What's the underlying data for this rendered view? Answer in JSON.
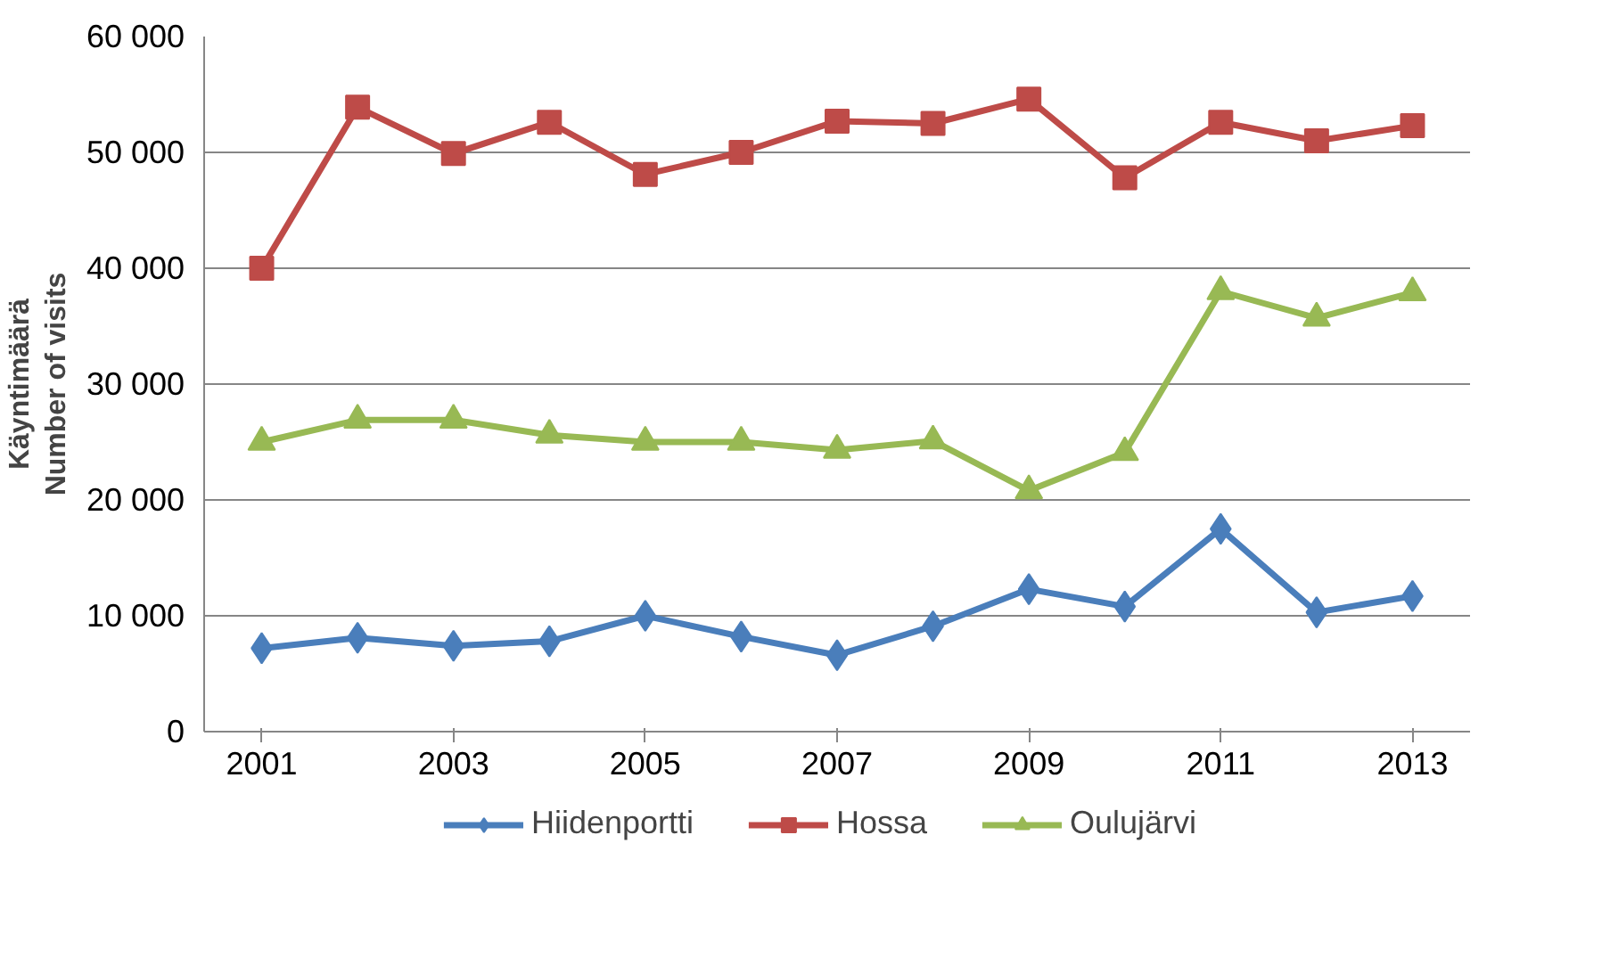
{
  "chart_data": {
    "type": "line",
    "ylabel": "Käyntimäärä\nNumber of visits",
    "x": [
      2001,
      2002,
      2003,
      2004,
      2005,
      2006,
      2007,
      2008,
      2009,
      2010,
      2011,
      2012,
      2013
    ],
    "series": [
      {
        "name": "Hiidenportti",
        "color": "#4a7ebb",
        "marker": "diamond",
        "values": [
          7200,
          8100,
          7400,
          7800,
          10000,
          8200,
          6600,
          9100,
          12300,
          10800,
          17500,
          10300,
          11700
        ]
      },
      {
        "name": "Hossa",
        "color": "#be4b48",
        "marker": "square",
        "values": [
          40000,
          53900,
          49900,
          52600,
          48100,
          50000,
          52700,
          52500,
          54600,
          47800,
          52600,
          51000,
          52300
        ]
      },
      {
        "name": "Oulujärvi",
        "color": "#98b954",
        "marker": "triangle",
        "values": [
          25000,
          26900,
          26900,
          25600,
          25000,
          25000,
          24300,
          25100,
          20800,
          24100,
          38000,
          35700,
          37900
        ]
      }
    ],
    "xlim": [
      2000.4,
      2013.6
    ],
    "xticks": [
      2001,
      2003,
      2005,
      2007,
      2009,
      2011,
      2013
    ],
    "ylim": [
      0,
      60000
    ],
    "yticks": [
      {
        "value": 0,
        "label": "0"
      },
      {
        "value": 10000,
        "label": "10 000"
      },
      {
        "value": 20000,
        "label": "20 000"
      },
      {
        "value": 30000,
        "label": "30 000"
      },
      {
        "value": 40000,
        "label": "40 000"
      },
      {
        "value": 50000,
        "label": "50 000"
      },
      {
        "value": 60000,
        "label": "60 000"
      }
    ],
    "grid": "y",
    "legend": "bottom",
    "line_style": "solid"
  }
}
